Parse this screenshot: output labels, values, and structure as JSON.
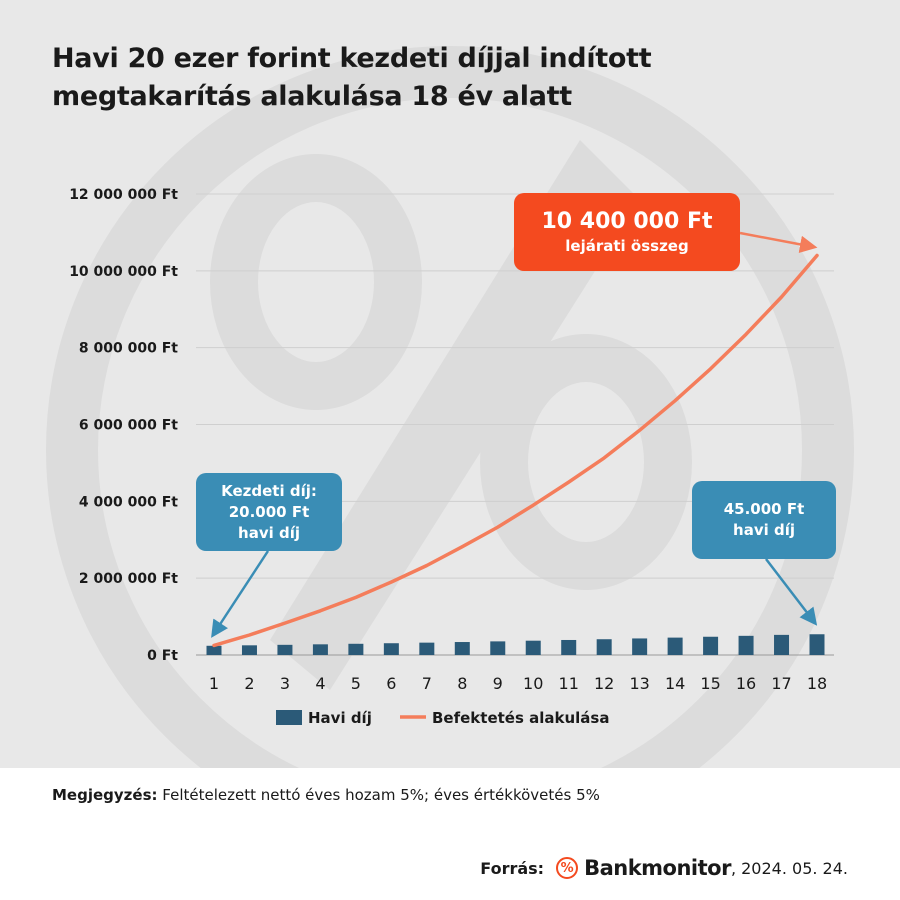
{
  "title_lines": [
    "Havi 20 ezer forint kezdeti díjjal indított",
    "megtakarítás alakulása 18 év alatt"
  ],
  "chart_data": {
    "type": "bar+line",
    "categories": [
      "1",
      "2",
      "3",
      "4",
      "5",
      "6",
      "7",
      "8",
      "9",
      "10",
      "11",
      "12",
      "13",
      "14",
      "15",
      "16",
      "17",
      "18"
    ],
    "y_ticks": [
      "0 Ft",
      "2 000 000 Ft",
      "4 000 000 Ft",
      "6 000 000 Ft",
      "8 000 000 Ft",
      "10 000 000 Ft",
      "12 000 000 Ft"
    ],
    "ylim": [
      0,
      12000000
    ],
    "grid": true,
    "legend_position": "bottom",
    "series": [
      {
        "name": "Havi díj",
        "type": "bar",
        "color": "#2b5a78",
        "values": [
          240000,
          252000,
          264600,
          277800,
          291700,
          306300,
          321600,
          337700,
          354600,
          372300,
          390900,
          410500,
          431000,
          452600,
          475200,
          499000,
          523900,
          540000
        ]
      },
      {
        "name": "Befektetés alakulása",
        "type": "line",
        "color": "#f47d5b",
        "values": [
          250000,
          520000,
          830000,
          1150000,
          1500000,
          1900000,
          2330000,
          2820000,
          3330000,
          3900000,
          4500000,
          5130000,
          5850000,
          6620000,
          7450000,
          8350000,
          9320000,
          10400000
        ]
      }
    ]
  },
  "annotations": {
    "left": {
      "lines": [
        "Kezdeti díj:",
        "20.000 Ft",
        "havi díj"
      ]
    },
    "right": {
      "lines": [
        "45.000 Ft",
        "havi díj"
      ]
    },
    "top": {
      "value": "10 400 000 Ft",
      "label": "lejárati összeg"
    }
  },
  "note": {
    "label": "Megjegyzés:",
    "text": "Feltételezett nettó éves hozam 5%; éves értékkövetés 5%"
  },
  "source": {
    "label": "Forrás:",
    "logo": "%",
    "brand": "Bankmonitor",
    "date": ", 2024. 05. 24."
  },
  "colors": {
    "background": "#e8e8e8",
    "bar": "#2b5a78",
    "line": "#f47d5b",
    "callout_blue": "#3a8db5",
    "callout_orange": "#f44a1f"
  }
}
